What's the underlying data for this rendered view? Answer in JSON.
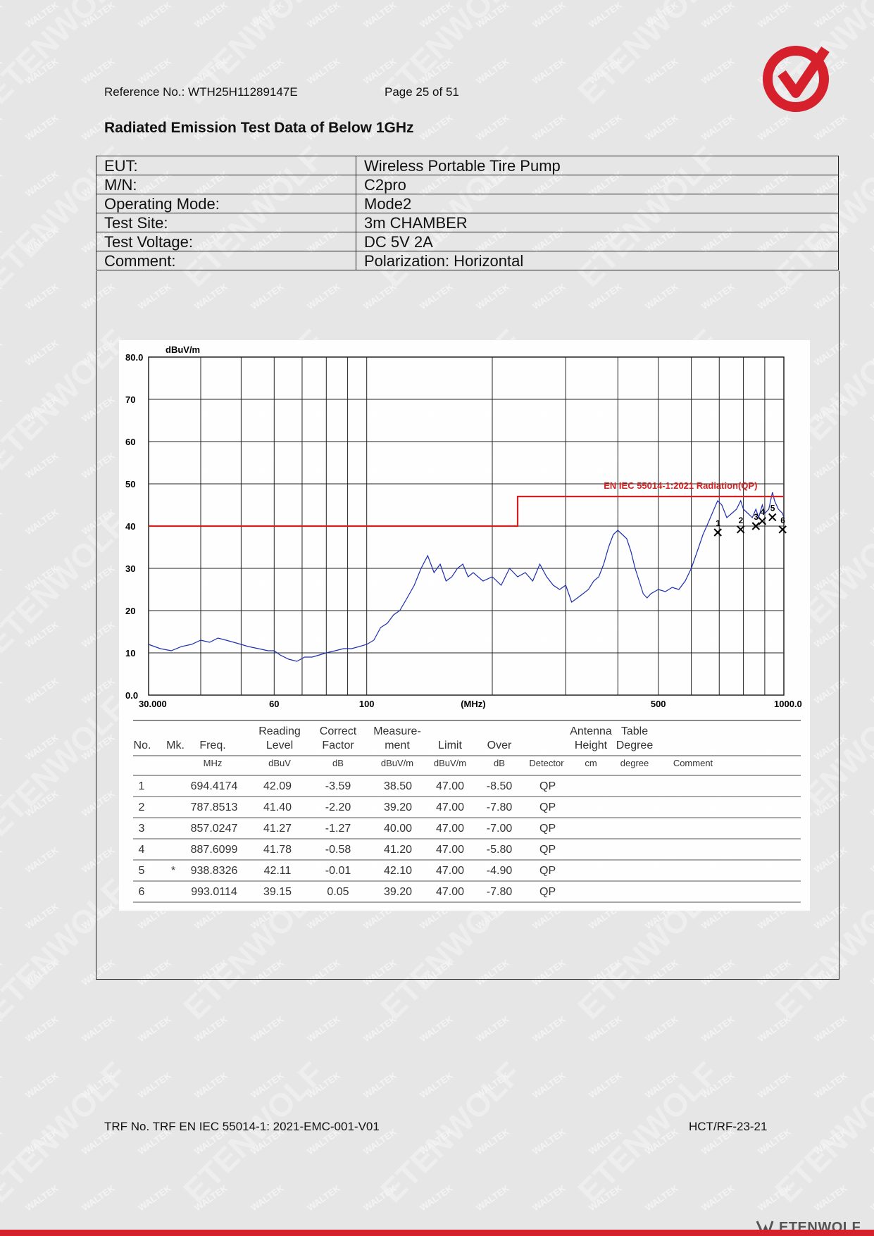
{
  "header": {
    "reference": "Reference No.: WTH25H11289147E",
    "page": "Page 25 of 51"
  },
  "doc_title": "Radiated Emission Test Data of Below 1GHz",
  "info_rows": [
    {
      "key": "EUT:",
      "value": "Wireless Portable Tire Pump"
    },
    {
      "key": "M/N:",
      "value": "C2pro"
    },
    {
      "key": "Operating Mode:",
      "value": "Mode2"
    },
    {
      "key": "Test Site:",
      "value": "3m CHAMBER"
    },
    {
      "key": "Test Voltage:",
      "value": "DC 5V 2A"
    },
    {
      "key": "Comment:",
      "value": "Polarization: Horizontal"
    }
  ],
  "chart_data": {
    "type": "line",
    "ylabel": "dBuV/m",
    "xlabel": "(MHz)",
    "x_scale": "log",
    "xlim": [
      30,
      1000
    ],
    "ylim": [
      0,
      80
    ],
    "grid": true,
    "y_ticks": [
      "80.0",
      "70",
      "60",
      "50",
      "40",
      "30",
      "20",
      "10",
      "0.0"
    ],
    "x_ticks": [
      {
        "value": 30,
        "label": "30.000"
      },
      {
        "value": 60,
        "label": "60"
      },
      {
        "value": 100,
        "label": "100"
      },
      {
        "value": 500,
        "label": "500"
      },
      {
        "value": 1000,
        "label": "1000.0"
      }
    ],
    "limit_line": {
      "name": "EN IEC 55014-1:2021 Radiation(QP)",
      "color": "#d42020",
      "points": [
        [
          30,
          40
        ],
        [
          230,
          40
        ],
        [
          230,
          47
        ],
        [
          1000,
          47
        ]
      ]
    },
    "series": [
      {
        "color": "#1c2fb0",
        "points": [
          [
            30,
            12
          ],
          [
            32,
            11
          ],
          [
            34,
            10.5
          ],
          [
            36,
            11.5
          ],
          [
            38,
            12
          ],
          [
            40,
            13
          ],
          [
            42,
            12.5
          ],
          [
            44,
            13.5
          ],
          [
            46,
            13
          ],
          [
            48,
            12.5
          ],
          [
            50,
            12
          ],
          [
            52,
            11.5
          ],
          [
            55,
            11
          ],
          [
            58,
            10.5
          ],
          [
            60,
            10.5
          ],
          [
            62,
            9.5
          ],
          [
            65,
            8.5
          ],
          [
            68,
            8
          ],
          [
            71,
            9
          ],
          [
            74,
            9
          ],
          [
            77,
            9.5
          ],
          [
            80,
            10
          ],
          [
            84,
            10.5
          ],
          [
            88,
            11
          ],
          [
            92,
            11
          ],
          [
            96,
            11.5
          ],
          [
            100,
            12
          ],
          [
            104,
            13
          ],
          [
            108,
            16
          ],
          [
            112,
            17
          ],
          [
            116,
            19
          ],
          [
            120,
            20
          ],
          [
            125,
            23
          ],
          [
            130,
            26
          ],
          [
            135,
            30
          ],
          [
            140,
            33
          ],
          [
            145,
            29
          ],
          [
            150,
            31
          ],
          [
            155,
            27
          ],
          [
            160,
            28
          ],
          [
            165,
            30
          ],
          [
            170,
            31
          ],
          [
            175,
            28
          ],
          [
            180,
            29
          ],
          [
            190,
            27
          ],
          [
            200,
            28
          ],
          [
            210,
            26
          ],
          [
            220,
            30
          ],
          [
            230,
            28
          ],
          [
            240,
            29
          ],
          [
            250,
            27
          ],
          [
            260,
            31
          ],
          [
            270,
            28
          ],
          [
            280,
            26
          ],
          [
            290,
            25
          ],
          [
            300,
            26
          ],
          [
            310,
            22
          ],
          [
            320,
            23
          ],
          [
            330,
            24
          ],
          [
            340,
            25
          ],
          [
            350,
            27
          ],
          [
            360,
            28
          ],
          [
            370,
            31
          ],
          [
            380,
            35
          ],
          [
            390,
            38
          ],
          [
            400,
            39
          ],
          [
            410,
            38
          ],
          [
            420,
            37
          ],
          [
            430,
            34
          ],
          [
            440,
            30
          ],
          [
            450,
            27
          ],
          [
            460,
            24
          ],
          [
            470,
            23
          ],
          [
            480,
            24
          ],
          [
            500,
            25
          ],
          [
            520,
            24.5
          ],
          [
            540,
            25.5
          ],
          [
            560,
            25
          ],
          [
            580,
            27
          ],
          [
            600,
            30
          ],
          [
            620,
            34
          ],
          [
            640,
            38
          ],
          [
            660,
            41
          ],
          [
            680,
            44
          ],
          [
            694,
            46
          ],
          [
            710,
            45
          ],
          [
            730,
            42
          ],
          [
            750,
            43
          ],
          [
            770,
            44
          ],
          [
            788,
            46
          ],
          [
            800,
            44
          ],
          [
            820,
            43
          ],
          [
            840,
            42
          ],
          [
            857,
            44
          ],
          [
            870,
            42
          ],
          [
            888,
            45
          ],
          [
            900,
            43
          ],
          [
            920,
            44
          ],
          [
            939,
            48
          ],
          [
            950,
            46
          ],
          [
            970,
            44
          ],
          [
            993,
            43
          ],
          [
            1000,
            42
          ]
        ]
      }
    ],
    "markers": [
      {
        "label": "1",
        "x": 694.4174,
        "y": 38.5
      },
      {
        "label": "2",
        "x": 787.8513,
        "y": 39.2
      },
      {
        "label": "3",
        "x": 857.0247,
        "y": 40.0
      },
      {
        "label": "4",
        "x": 887.6099,
        "y": 41.2
      },
      {
        "label": "5",
        "x": 938.8326,
        "y": 42.1
      },
      {
        "label": "6",
        "x": 993.0114,
        "y": 39.2
      }
    ]
  },
  "data_table": {
    "headers": [
      {
        "l1": "",
        "l2": "No."
      },
      {
        "l1": "",
        "l2": "Mk."
      },
      {
        "l1": "",
        "l2": "Freq."
      },
      {
        "l1": "Reading",
        "l2": "Level"
      },
      {
        "l1": "Correct",
        "l2": "Factor"
      },
      {
        "l1": "Measure-",
        "l2": "ment"
      },
      {
        "l1": "",
        "l2": "Limit"
      },
      {
        "l1": "",
        "l2": "Over"
      },
      {
        "l1": "",
        "l2": ""
      },
      {
        "l1": "Antenna",
        "l2": "Height"
      },
      {
        "l1": "Table",
        "l2": "Degree"
      },
      {
        "l1": "",
        "l2": ""
      }
    ],
    "units": [
      "",
      "",
      "MHz",
      "dBuV",
      "dB",
      "dBuV/m",
      "dBuV/m",
      "dB",
      "Detector",
      "cm",
      "degree",
      "Comment"
    ],
    "rows": [
      [
        "1",
        "",
        "694.4174",
        "42.09",
        "-3.59",
        "38.50",
        "47.00",
        "-8.50",
        "QP"
      ],
      [
        "2",
        "",
        "787.8513",
        "41.40",
        "-2.20",
        "39.20",
        "47.00",
        "-7.80",
        "QP"
      ],
      [
        "3",
        "",
        "857.0247",
        "41.27",
        "-1.27",
        "40.00",
        "47.00",
        "-7.00",
        "QP"
      ],
      [
        "4",
        "",
        "887.6099",
        "41.78",
        "-0.58",
        "41.20",
        "47.00",
        "-5.80",
        "QP"
      ],
      [
        "5",
        "*",
        "938.8326",
        "42.11",
        "-0.01",
        "42.10",
        "47.00",
        "-4.90",
        "QP"
      ],
      [
        "6",
        "",
        "993.0114",
        "39.15",
        "0.05",
        "39.20",
        "47.00",
        "-7.80",
        "QP"
      ]
    ]
  },
  "footer": {
    "trf": "TRF No. TRF EN IEC 55014-1: 2021-EMC-001-V01",
    "code": "HCT/RF-23-21"
  },
  "brand": {
    "name": "ETENWOLF",
    "logo_color": "#d6202b"
  }
}
